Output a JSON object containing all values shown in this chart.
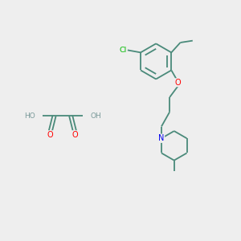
{
  "background_color": "#EEEEEE",
  "bond_color": "#4a8a7a",
  "atom_colors": {
    "O": "#ff0000",
    "N": "#0000ee",
    "Cl": "#00bb00",
    "H": "#7a9a9a",
    "C": "#4a8a7a"
  },
  "bond_lw": 1.3,
  "font_size": 6.5
}
